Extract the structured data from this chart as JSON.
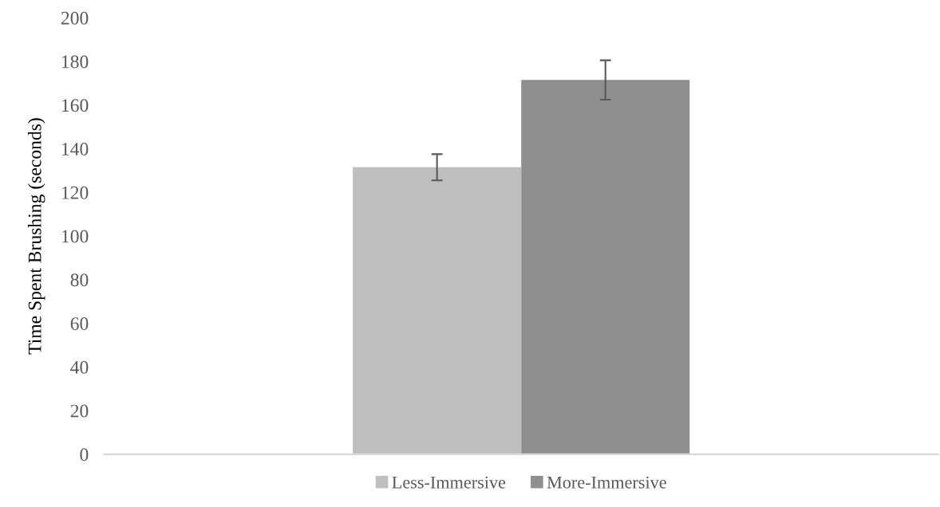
{
  "chart_data": {
    "type": "bar",
    "ylabel": "Time Spent Brushing (seconds)",
    "categories": [
      null
    ],
    "series": [
      {
        "name": "Less-Immersive",
        "color": "#bfbfbf",
        "values": [
          131.5
        ],
        "errors": [
          6
        ]
      },
      {
        "name": "More-Immersive",
        "color": "#8f8f8f",
        "values": [
          171.5
        ],
        "errors": [
          9
        ]
      }
    ],
    "ylim": [
      0,
      200
    ],
    "yticks": [
      0,
      20,
      40,
      60,
      80,
      100,
      120,
      140,
      160,
      180,
      200
    ],
    "grid": false,
    "legend": "bottom"
  }
}
